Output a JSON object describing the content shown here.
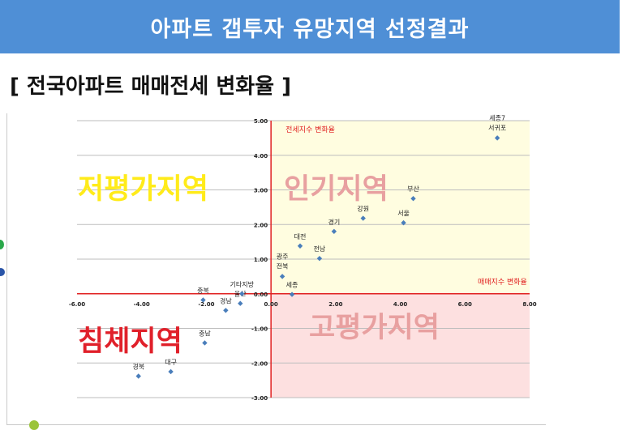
{
  "header": {
    "title": "아파트 갭투자 유망지역 선정결과"
  },
  "subtitle": "[ 전국아파트 매매전세 변화율 ]",
  "chart_data": {
    "type": "scatter",
    "xlim": [
      -6,
      8
    ],
    "ylim": [
      -3,
      5
    ],
    "x_ticks": [
      "-6.00",
      "-4.00",
      "-2.00",
      "0.00",
      "2.00",
      "4.00",
      "6.00",
      "8.00"
    ],
    "y_ticks": [
      "5.00",
      "4.00",
      "3.00",
      "2.00",
      "1.00",
      "0.00",
      "-1.00",
      "-2.00",
      "-3.00"
    ],
    "xlabel": "매매지수 변화율",
    "ylabel": "전세지수 변화율",
    "grid": true,
    "marker_color": "#4a7ebb",
    "quadrants": [
      {
        "name": "인기지역",
        "color": "#e8a0a0",
        "fill": "#fffde0"
      },
      {
        "name": "저평가지역",
        "color": "#ffeb1a"
      },
      {
        "name": "침체지역",
        "color": "#e0202a"
      },
      {
        "name": "고평가지역",
        "color": "#e8a0a0",
        "fill": "#fde0e0"
      }
    ],
    "points": [
      {
        "label": "세종7",
        "label2": "서귀포",
        "x": 7.0,
        "y": 4.5
      },
      {
        "label": "부산",
        "x": 4.4,
        "y": 2.75
      },
      {
        "label": "강원",
        "x": 2.85,
        "y": 2.18
      },
      {
        "label": "서울",
        "x": 4.1,
        "y": 2.05
      },
      {
        "label": "경기",
        "x": 1.95,
        "y": 1.8
      },
      {
        "label": "대전",
        "x": 0.9,
        "y": 1.38
      },
      {
        "label": "전남",
        "x": 1.5,
        "y": 1.02
      },
      {
        "label": "광주",
        "label2": "전북",
        "x": 0.35,
        "y": 0.5
      },
      {
        "label": "세종",
        "x": 0.65,
        "y": -0.02
      },
      {
        "label": "울산",
        "x": -0.95,
        "y": -0.28
      },
      {
        "label": "기타지방",
        "x": -0.9,
        "y": 0.0
      },
      {
        "label": "충북",
        "x": -2.1,
        "y": -0.18
      },
      {
        "label": "경남",
        "x": -1.4,
        "y": -0.48
      },
      {
        "label": "충남",
        "x": -2.05,
        "y": -1.42
      },
      {
        "label": "대구",
        "x": -3.1,
        "y": -2.25
      },
      {
        "label": "경북",
        "x": -4.1,
        "y": -2.38
      }
    ]
  }
}
